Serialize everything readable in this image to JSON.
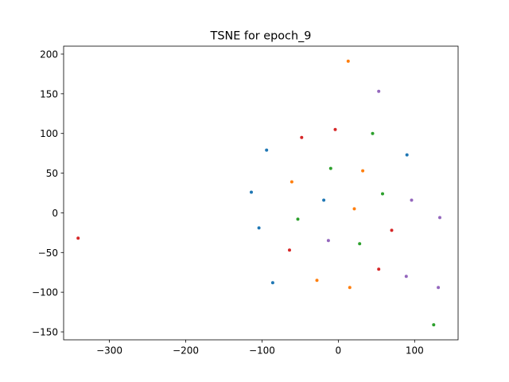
{
  "chart_data": {
    "type": "scatter",
    "title": "TSNE for epoch_9",
    "xlabel": "",
    "ylabel": "",
    "xlim": [
      -360,
      157
    ],
    "ylim": [
      -160,
      210
    ],
    "xticks": [
      -300,
      -200,
      -100,
      0,
      100
    ],
    "xtick_labels": [
      "−300",
      "−200",
      "−100",
      "0",
      "100"
    ],
    "yticks": [
      -150,
      -100,
      -50,
      0,
      50,
      100,
      150,
      200
    ],
    "ytick_labels": [
      "−150",
      "−100",
      "−50",
      "0",
      "50",
      "100",
      "150",
      "200"
    ],
    "grid": false,
    "legend": "none",
    "series": [
      {
        "color": "#1f77b4",
        "points": [
          {
            "x": -94,
            "y": 79
          },
          {
            "x": -114,
            "y": 26
          },
          {
            "x": -19,
            "y": 16
          },
          {
            "x": -104,
            "y": -19
          },
          {
            "x": -86,
            "y": -88
          },
          {
            "x": 90,
            "y": 73
          }
        ]
      },
      {
        "color": "#ff7f0e",
        "points": [
          {
            "x": 13,
            "y": 191
          },
          {
            "x": 32,
            "y": 53
          },
          {
            "x": -61,
            "y": 39
          },
          {
            "x": 21,
            "y": 5
          },
          {
            "x": -28,
            "y": -85
          },
          {
            "x": 15,
            "y": -94
          }
        ]
      },
      {
        "color": "#2ca02c",
        "points": [
          {
            "x": 45,
            "y": 100
          },
          {
            "x": -10,
            "y": 56
          },
          {
            "x": 58,
            "y": 24
          },
          {
            "x": -53,
            "y": -8
          },
          {
            "x": 28,
            "y": -39
          },
          {
            "x": 125,
            "y": -141
          }
        ]
      },
      {
        "color": "#d62728",
        "points": [
          {
            "x": -4,
            "y": 105
          },
          {
            "x": -48,
            "y": 95
          },
          {
            "x": -341,
            "y": -32
          },
          {
            "x": 70,
            "y": -22
          },
          {
            "x": -64,
            "y": -47
          },
          {
            "x": 53,
            "y": -71
          }
        ]
      },
      {
        "color": "#9467bd",
        "points": [
          {
            "x": 53,
            "y": 153
          },
          {
            "x": 96,
            "y": 16
          },
          {
            "x": 133,
            "y": -6
          },
          {
            "x": -13,
            "y": -35
          },
          {
            "x": 89,
            "y": -80
          },
          {
            "x": 131,
            "y": -94
          }
        ]
      }
    ]
  }
}
